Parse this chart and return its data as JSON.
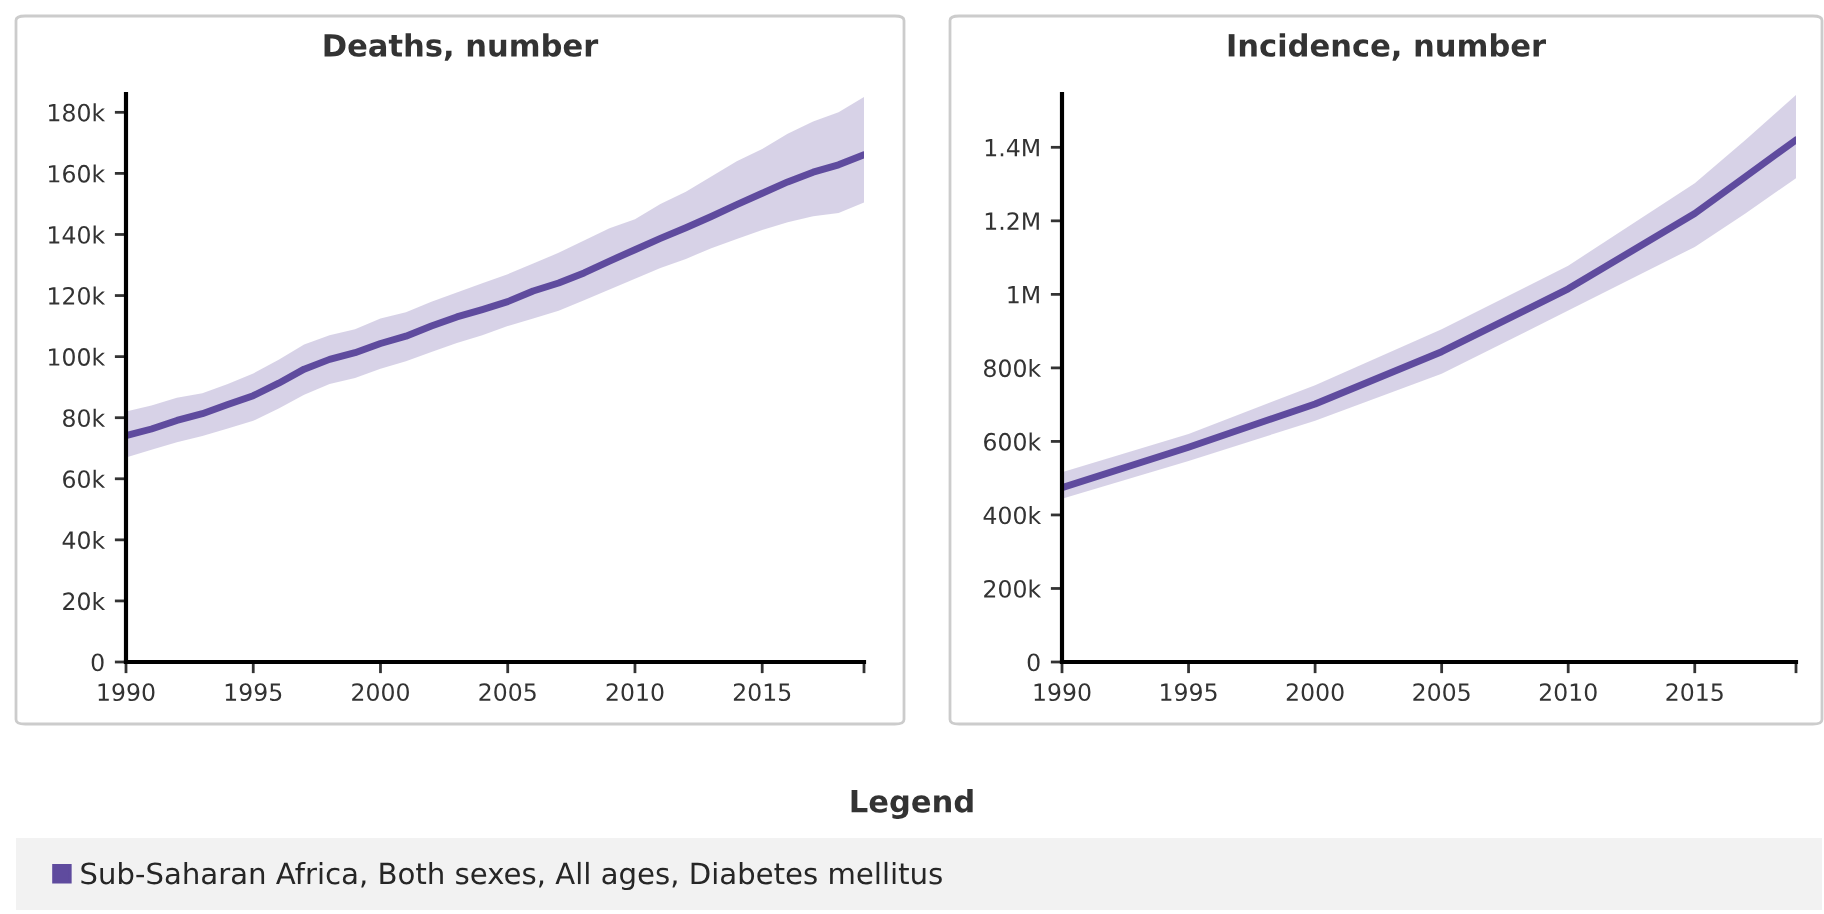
{
  "chart_data": [
    {
      "type": "line",
      "title": "Deaths, number",
      "x": [
        1990,
        1991,
        1992,
        1993,
        1994,
        1995,
        1996,
        1997,
        1998,
        1999,
        2000,
        2001,
        2002,
        2003,
        2004,
        2005,
        2006,
        2007,
        2008,
        2009,
        2010,
        2011,
        2012,
        2013,
        2014,
        2015,
        2016,
        2017,
        2018,
        2019
      ],
      "series": [
        {
          "name": "Sub-Saharan Africa, Both sexes, All ages, Diabetes mellitus",
          "color": "#5f4b9e",
          "values": [
            74100,
            76300,
            79100,
            81300,
            84300,
            87200,
            91300,
            95900,
            99100,
            101300,
            104300,
            106700,
            110000,
            113000,
            115400,
            118000,
            121500,
            124100,
            127400,
            131300,
            135000,
            138700,
            142200,
            145900,
            149800,
            153500,
            157200,
            160400,
            162800,
            166100
          ],
          "upper": [
            82000,
            84000,
            86500,
            88000,
            91000,
            94500,
            99000,
            104000,
            107000,
            109000,
            112500,
            114500,
            118000,
            121000,
            124000,
            127000,
            130500,
            134000,
            138000,
            142000,
            145000,
            150000,
            154000,
            159000,
            164000,
            168000,
            173000,
            177000,
            180000,
            185000
          ],
          "lower": [
            67000,
            69500,
            72000,
            74000,
            76500,
            79000,
            83000,
            87500,
            91000,
            93000,
            96000,
            98500,
            101500,
            104500,
            107000,
            110000,
            112500,
            115000,
            118500,
            122000,
            125500,
            129000,
            132000,
            135500,
            138500,
            141500,
            144000,
            146000,
            147000,
            150500
          ]
        }
      ],
      "xlim": [
        1990,
        2019
      ],
      "xticks": [
        1990,
        1995,
        2000,
        2005,
        2010,
        2015,
        {
          "value": 2019,
          "label": null
        }
      ],
      "ylim": [
        0,
        186000
      ],
      "yticks": [
        0,
        {
          "value": 20000,
          "label": "20k"
        },
        {
          "value": 40000,
          "label": "40k"
        },
        {
          "value": 60000,
          "label": "60k"
        },
        {
          "value": 80000,
          "label": "80k"
        },
        {
          "value": 100000,
          "label": "100k"
        },
        {
          "value": 120000,
          "label": "120k"
        },
        {
          "value": 140000,
          "label": "140k"
        },
        {
          "value": 160000,
          "label": "160k"
        },
        {
          "value": 180000,
          "label": "180k"
        }
      ],
      "grid": false,
      "legend": "bottom",
      "legend_title": "Legend",
      "marker": "none",
      "line_style": "solid"
    },
    {
      "type": "line",
      "title": "Incidence, number",
      "x": [
        1990,
        1995,
        2000,
        2005,
        2010,
        2015,
        2017,
        2019
      ],
      "series": [
        {
          "name": "Sub-Saharan Africa, Both sexes, All ages, Diabetes mellitus",
          "color": "#5f4b9e",
          "values": [
            474000,
            584000,
            702000,
            844000,
            1015000,
            1220000,
            1320000,
            1420000
          ],
          "upper": [
            516000,
            620000,
            753000,
            905000,
            1078000,
            1302000,
            1420000,
            1542000
          ],
          "lower": [
            444000,
            547000,
            656000,
            784000,
            956000,
            1129000,
            1220000,
            1316000
          ]
        }
      ],
      "xlim": [
        1990,
        2019
      ],
      "xticks": [
        1990,
        1995,
        2000,
        2005,
        2010,
        2015,
        {
          "value": 2019,
          "label": null
        }
      ],
      "ylim": [
        0,
        1545000
      ],
      "yticks": [
        0,
        {
          "value": 200000,
          "label": "200k"
        },
        {
          "value": 400000,
          "label": "400k"
        },
        {
          "value": 600000,
          "label": "600k"
        },
        {
          "value": 800000,
          "label": "800k"
        },
        {
          "value": 1000000,
          "label": "1M"
        },
        {
          "value": 1200000,
          "label": "1.2M"
        },
        {
          "value": 1400000,
          "label": "1.4M"
        }
      ],
      "grid": false,
      "legend": "bottom",
      "marker": "none",
      "line_style": "solid"
    }
  ]
}
